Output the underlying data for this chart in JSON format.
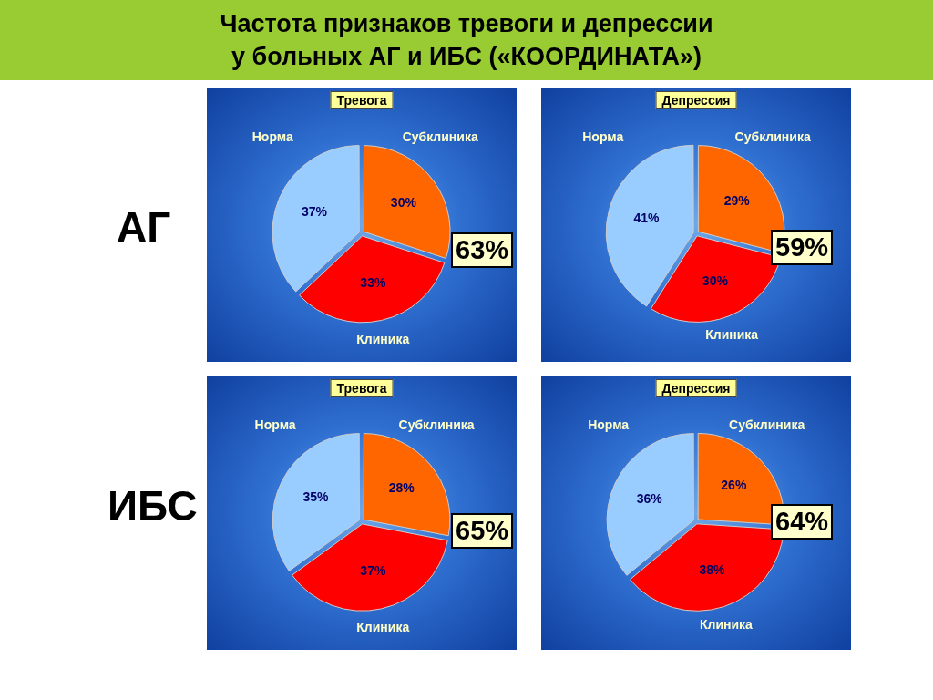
{
  "chart_data": [
    {
      "type": "other",
      "title": "Частота признаков тревоги и депрессии\nу больных АГ и ИБС («КООРДИНАТА»)",
      "annotations": [
        "АГ",
        "ИБС"
      ]
    },
    {
      "type": "pie",
      "title": "Тревога",
      "categories": [
        "Субклиника",
        "Клиника",
        "Норма"
      ],
      "values": [
        30,
        33,
        37
      ],
      "value_labels": [
        "30%",
        "33%",
        "37%"
      ],
      "colors": [
        "#ff6600",
        "#ff0000",
        "#99ccff"
      ],
      "annotations": [
        "63%"
      ]
    },
    {
      "type": "pie",
      "title": "Депрессия",
      "categories": [
        "Субклиника",
        "Клиника",
        "Норма"
      ],
      "values": [
        29,
        30,
        41
      ],
      "value_labels": [
        "29%",
        "30%",
        "41%"
      ],
      "colors": [
        "#ff6600",
        "#ff0000",
        "#99ccff"
      ],
      "annotations": [
        "59%"
      ]
    },
    {
      "type": "pie",
      "title": "Тревога",
      "categories": [
        "Субклиника",
        "Клиника",
        "Норма"
      ],
      "values": [
        28,
        37,
        35
      ],
      "value_labels": [
        "28%",
        "37%",
        "35%"
      ],
      "colors": [
        "#ff6600",
        "#ff0000",
        "#99ccff"
      ],
      "annotations": [
        "65%"
      ]
    },
    {
      "type": "pie",
      "title": "Депрессия",
      "categories": [
        "Субклиника",
        "Клиника",
        "Норма"
      ],
      "values": [
        26,
        38,
        36
      ],
      "value_labels": [
        "26%",
        "38%",
        "36%"
      ],
      "colors": [
        "#ff6600",
        "#ff0000",
        "#99ccff"
      ],
      "annotations": [
        "64%"
      ]
    }
  ]
}
